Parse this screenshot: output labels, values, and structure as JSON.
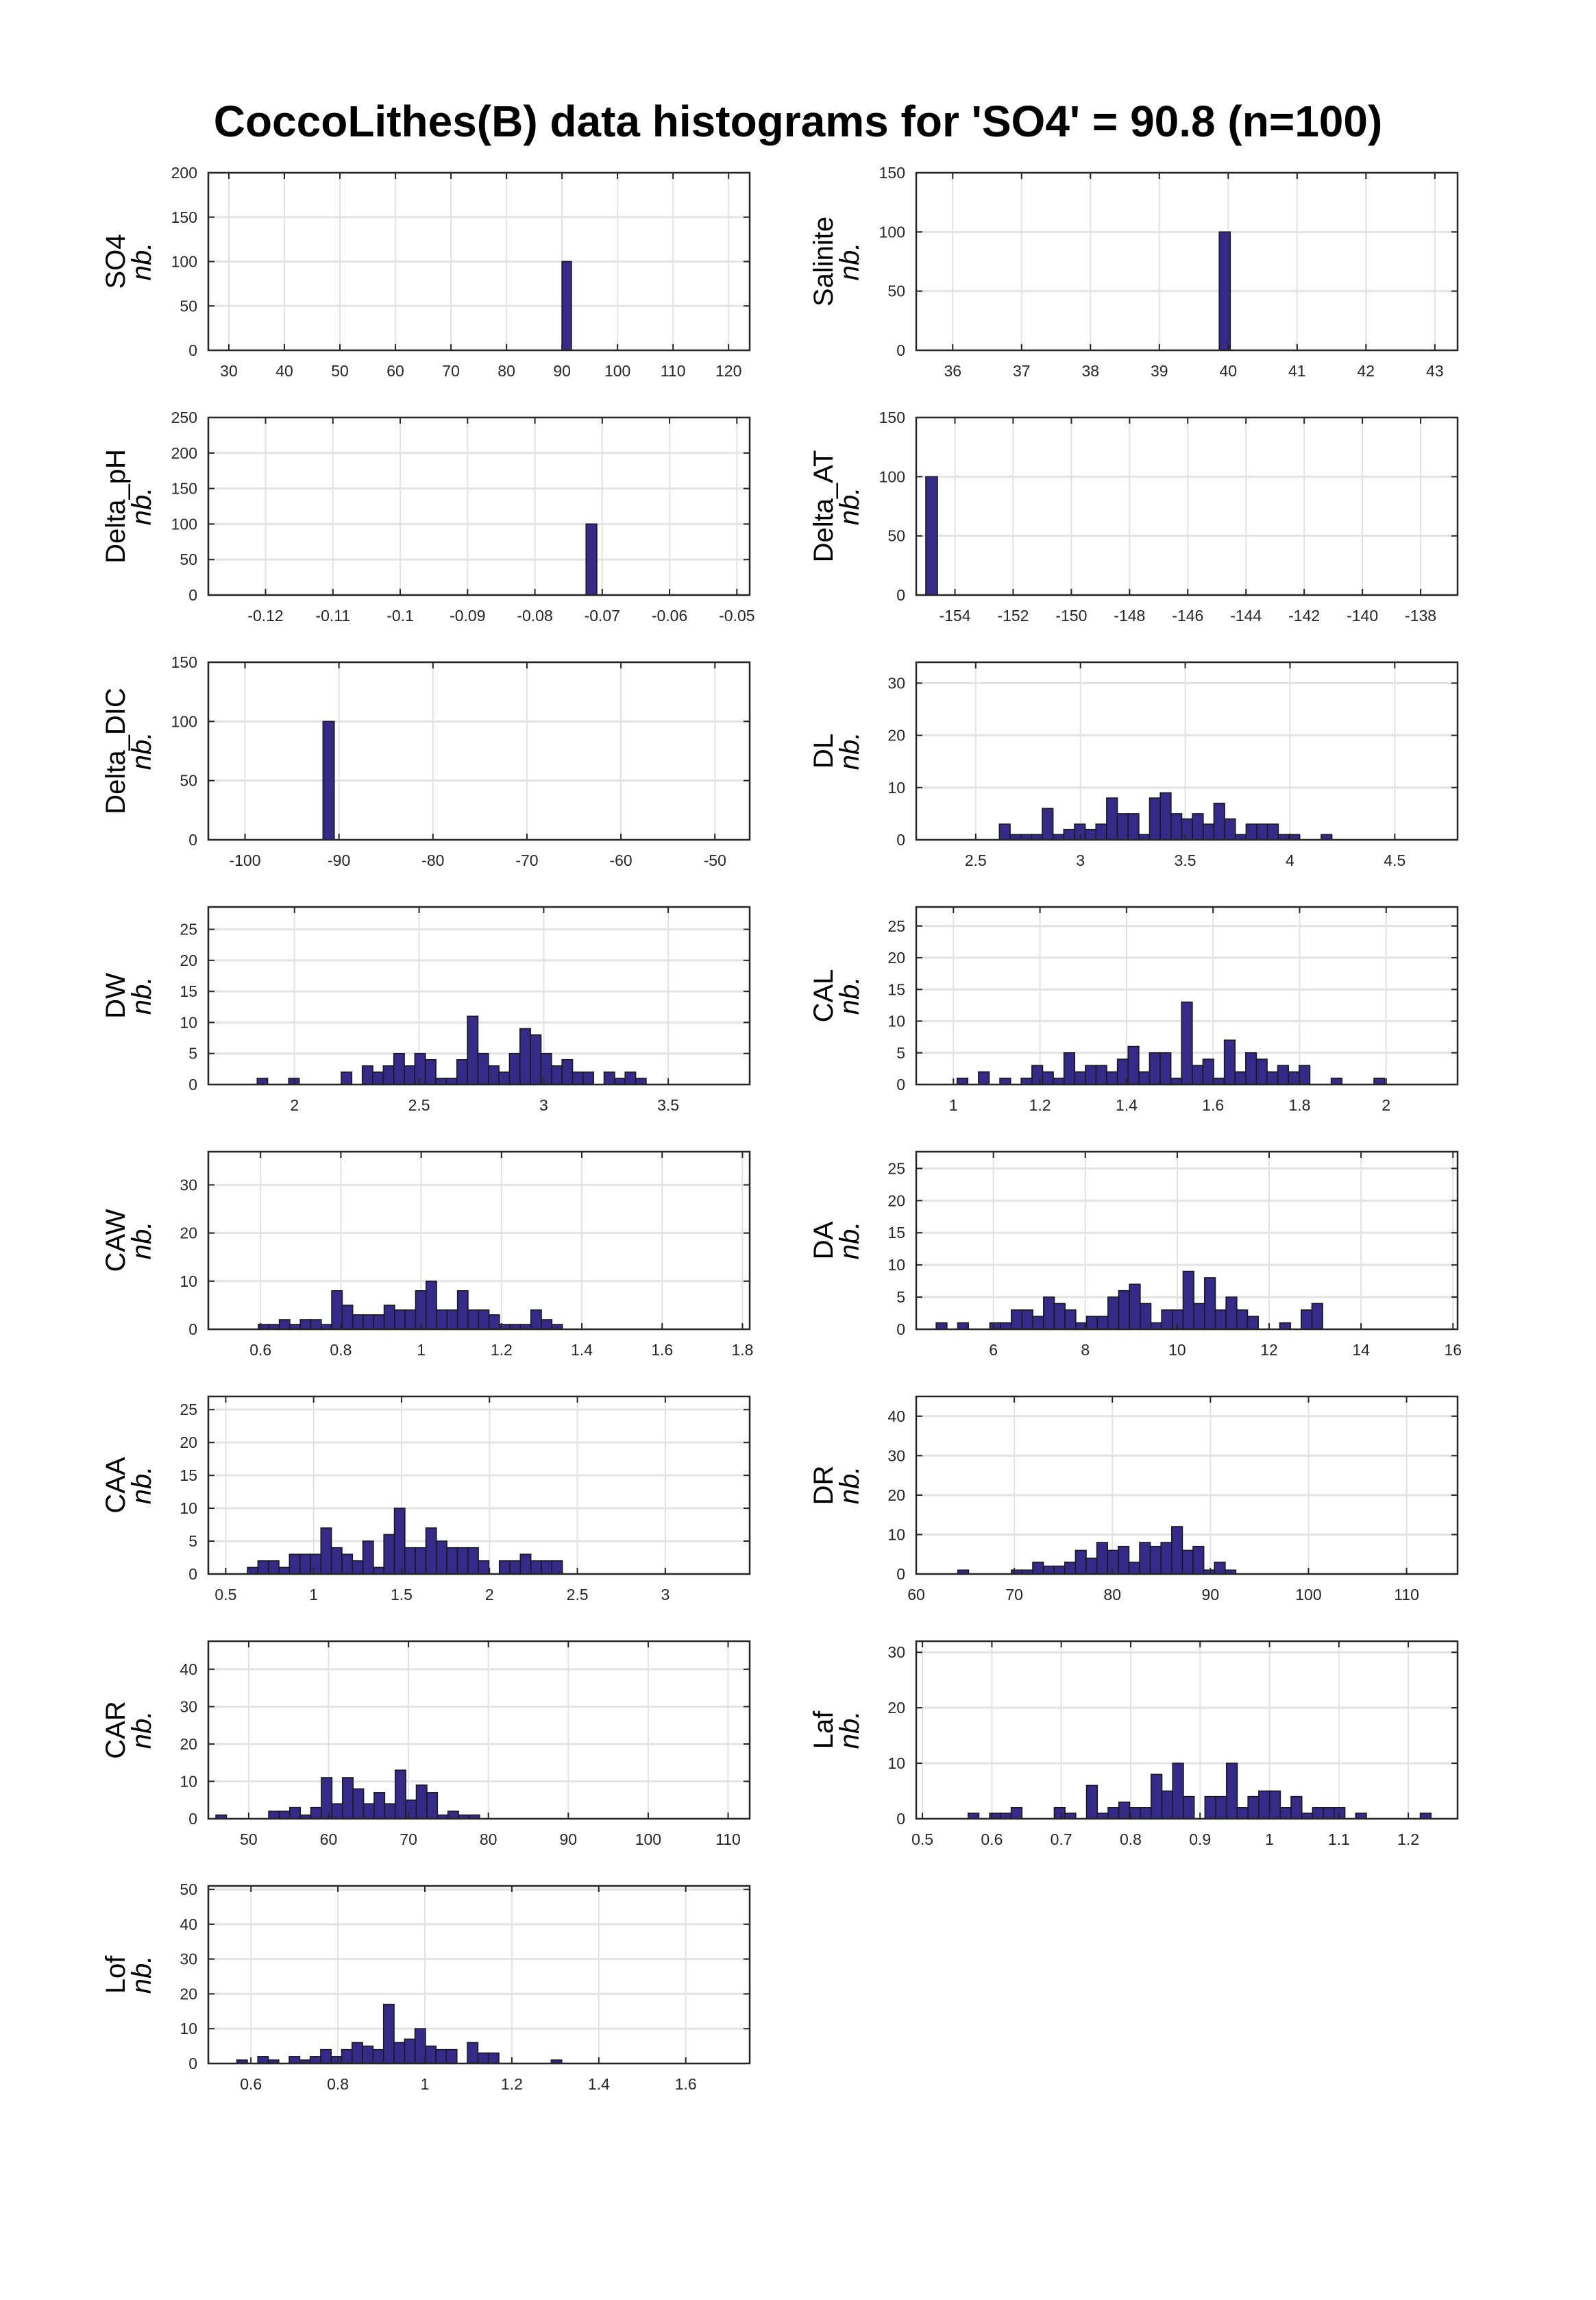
{
  "title": "CoccoLithes(B) data histograms for 'SO4' = 90.8 (n=100)",
  "colors": {
    "bar_fill": "#352a87",
    "bar_edge": "#1a1a1a",
    "grid": "#e3e3e3",
    "axis": "#262626"
  },
  "chart_data": {
    "type": "bar",
    "subtype": "histogram-grid",
    "title": "CoccoLithes(B) data histograms for 'SO4' = 90.8 (n=100)",
    "n": 100,
    "grid": true,
    "panels": [
      {
        "name": "SO4",
        "ylabel": "nb.",
        "xlim": [
          26.3,
          123.8
        ],
        "ylim": [
          0,
          200
        ],
        "xticks": [
          "30",
          "40",
          "50",
          "60",
          "70",
          "80",
          "90",
          "100",
          "110",
          "120"
        ],
        "yticks": [
          "0",
          "50",
          "100",
          "150",
          "200"
        ],
        "bin_start": 90.0,
        "bin_width": 1.7,
        "counts": [
          100
        ]
      },
      {
        "name": "Salinite",
        "ylabel": "nb.",
        "xlim": [
          35.47,
          43.33
        ],
        "ylim": [
          0,
          150
        ],
        "xticks": [
          "36",
          "37",
          "38",
          "39",
          "40",
          "41",
          "42",
          "43"
        ],
        "yticks": [
          "0",
          "50",
          "100",
          "150"
        ],
        "bin_start": 39.87,
        "bin_width": 0.16,
        "counts": [
          100
        ]
      },
      {
        "name": "Delta_pH",
        "ylabel": "nb.",
        "xlim": [
          -0.1285,
          -0.0481
        ],
        "ylim": [
          0,
          250
        ],
        "xticks": [
          "-0.12",
          "-0.11",
          "-0.1",
          "-0.09",
          "-0.08",
          "-0.07",
          "-0.06",
          "-0.05"
        ],
        "yticks": [
          "0",
          "50",
          "100",
          "150",
          "200",
          "250"
        ],
        "bin_start": -0.0724,
        "bin_width": 0.0016,
        "counts": [
          100
        ]
      },
      {
        "name": "Delta_AT",
        "ylabel": "nb.",
        "xlim": [
          -155.33,
          -136.73
        ],
        "ylim": [
          0,
          150
        ],
        "xticks": [
          "-154",
          "-152",
          "-150",
          "-148",
          "-146",
          "-144",
          "-142",
          "-140",
          "-138"
        ],
        "yticks": [
          "0",
          "50",
          "100",
          "150"
        ],
        "bin_start": -155.0,
        "bin_width": 0.4,
        "counts": [
          100
        ]
      },
      {
        "name": "Delta_DIC",
        "ylabel": "nb.",
        "xlim": [
          -103.9,
          -46.3
        ],
        "ylim": [
          0,
          150
        ],
        "xticks": [
          "-100",
          "-90",
          "-80",
          "-70",
          "-60",
          "-50"
        ],
        "yticks": [
          "0",
          "50",
          "100",
          "150"
        ],
        "bin_start": -91.7,
        "bin_width": 1.2,
        "counts": [
          100
        ]
      },
      {
        "name": "DL",
        "ylabel": "nb.",
        "xlim": [
          2.216,
          4.8
        ],
        "ylim": [
          0,
          34
        ],
        "xticks": [
          "2.5",
          "3",
          "3.5",
          "4",
          "4.5"
        ],
        "yticks": [
          "0",
          "10",
          "20",
          "30"
        ],
        "bin_start": 2.613,
        "bin_width": 0.0512,
        "counts": [
          3,
          1,
          1,
          1,
          6,
          1,
          2,
          3,
          2,
          3,
          8,
          5,
          5,
          1,
          8,
          9,
          5,
          4,
          5,
          3,
          7,
          4,
          1,
          3,
          3,
          3,
          1,
          1,
          0,
          0,
          1
        ]
      },
      {
        "name": "DW",
        "ylabel": "nb.",
        "xlim": [
          1.654,
          3.827
        ],
        "ylim": [
          0,
          28.6
        ],
        "xticks": [
          "2",
          "2.5",
          "3",
          "3.5"
        ],
        "yticks": [
          "0",
          "5",
          "10",
          "15",
          "20",
          "25"
        ],
        "bin_start": 1.85,
        "bin_width": 0.0422,
        "counts": [
          1,
          0,
          0,
          1,
          0,
          0,
          0,
          0,
          2,
          0,
          3,
          2,
          3,
          5,
          3,
          5,
          4,
          1,
          1,
          4,
          11,
          5,
          3,
          2,
          5,
          9,
          8,
          5,
          3,
          4,
          2,
          2,
          0,
          2,
          1,
          2,
          1
        ]
      },
      {
        "name": "CAL",
        "ylabel": "nb.",
        "xlim": [
          0.914,
          2.165
        ],
        "ylim": [
          0,
          28
        ],
        "xticks": [
          "1",
          "1.2",
          "1.4",
          "1.6",
          "1.8",
          "2"
        ],
        "yticks": [
          "0",
          "5",
          "10",
          "15",
          "20",
          "25"
        ],
        "bin_start": 1.0085,
        "bin_width": 0.0247,
        "counts": [
          1,
          0,
          2,
          0,
          1,
          0,
          1,
          3,
          2,
          1,
          5,
          2,
          3,
          3,
          2,
          4,
          6,
          2,
          5,
          5,
          1,
          13,
          3,
          4,
          1,
          7,
          2,
          5,
          4,
          2,
          3,
          2,
          3,
          0,
          0,
          1,
          0,
          0,
          0,
          1
        ]
      },
      {
        "name": "CAW",
        "ylabel": "nb.",
        "xlim": [
          0.47,
          1.818
        ],
        "ylim": [
          0,
          36.9
        ],
        "xticks": [
          "0.6",
          "0.8",
          "1",
          "1.2",
          "1.4",
          "1.6",
          "1.8"
        ],
        "yticks": [
          "0",
          "10",
          "20",
          "30"
        ],
        "bin_start": 0.5946,
        "bin_width": 0.0261,
        "counts": [
          1,
          1,
          2,
          1,
          2,
          2,
          1,
          8,
          5,
          3,
          3,
          3,
          5,
          4,
          4,
          8,
          10,
          4,
          4,
          8,
          4,
          4,
          3,
          1,
          1,
          1,
          4,
          2,
          1
        ]
      },
      {
        "name": "DA",
        "ylabel": "nb.",
        "xlim": [
          4.32,
          16.1
        ],
        "ylim": [
          0,
          27.6
        ],
        "xticks": [
          "6",
          "8",
          "10",
          "12",
          "14",
          "16"
        ],
        "yticks": [
          "0",
          "5",
          "10",
          "15",
          "20",
          "25"
        ],
        "bin_start": 4.755,
        "bin_width": 0.2336,
        "counts": [
          1,
          0,
          1,
          0,
          0,
          1,
          1,
          3,
          3,
          2,
          5,
          4,
          3,
          1,
          2,
          2,
          5,
          6,
          7,
          4,
          1,
          3,
          3,
          9,
          4,
          8,
          3,
          5,
          3,
          2,
          0,
          0,
          1,
          0,
          3,
          4
        ]
      },
      {
        "name": "CAA",
        "ylabel": "nb.",
        "xlim": [
          0.401,
          3.48
        ],
        "ylim": [
          0,
          27
        ],
        "xticks": [
          "0.5",
          "1",
          "1.5",
          "2",
          "2.5",
          "3"
        ],
        "yticks": [
          "0",
          "5",
          "10",
          "15",
          "20",
          "25"
        ],
        "bin_start": 0.6235,
        "bin_width": 0.0597,
        "counts": [
          1,
          2,
          2,
          1,
          3,
          3,
          3,
          7,
          4,
          3,
          2,
          5,
          1,
          6,
          10,
          4,
          4,
          7,
          5,
          4,
          4,
          4,
          2,
          0,
          2,
          2,
          3,
          2,
          2,
          2
        ]
      },
      {
        "name": "DR",
        "ylabel": "nb.",
        "xlim": [
          60,
          115.2
        ],
        "ylim": [
          0,
          45
        ],
        "xticks": [
          "60",
          "70",
          "80",
          "90",
          "100",
          "110"
        ],
        "yticks": [
          "0",
          "10",
          "20",
          "30",
          "40"
        ],
        "bin_start": 64.25,
        "bin_width": 1.09,
        "counts": [
          1,
          0,
          0,
          0,
          0,
          1,
          1,
          3,
          2,
          2,
          3,
          6,
          4,
          8,
          6,
          7,
          3,
          8,
          7,
          8,
          12,
          6,
          7,
          1,
          3,
          1
        ]
      },
      {
        "name": "CAR",
        "ylabel": "nb.",
        "xlim": [
          44.95,
          112.7
        ],
        "ylim": [
          0,
          47.5
        ],
        "xticks": [
          "50",
          "60",
          "70",
          "80",
          "90",
          "100",
          "110"
        ],
        "yticks": [
          "0",
          "10",
          "20",
          "30",
          "40"
        ],
        "bin_start": 45.9,
        "bin_width": 1.32,
        "counts": [
          1,
          0,
          0,
          0,
          0,
          2,
          2,
          3,
          1,
          3,
          11,
          4,
          11,
          8,
          4,
          7,
          4,
          13,
          5,
          9,
          7,
          1,
          2,
          1,
          1
        ]
      },
      {
        "name": "Laf",
        "ylabel": "nb.",
        "xlim": [
          0.491,
          1.271
        ],
        "ylim": [
          0,
          32
        ],
        "xticks": [
          "0.5",
          "0.6",
          "0.7",
          "0.8",
          "0.9",
          "1",
          "1.1",
          "1.2"
        ],
        "yticks": [
          "0",
          "10",
          "20",
          "30"
        ],
        "bin_start": 0.5658,
        "bin_width": 0.01551,
        "counts": [
          1,
          0,
          1,
          1,
          2,
          0,
          0,
          0,
          2,
          1,
          0,
          6,
          1,
          2,
          3,
          2,
          2,
          8,
          5,
          10,
          4,
          0,
          4,
          4,
          10,
          2,
          4,
          5,
          5,
          2,
          4,
          1,
          2,
          2,
          2,
          0,
          1,
          0,
          0,
          0,
          0,
          0,
          1
        ]
      },
      {
        "name": "Lof",
        "ylabel": "nb.",
        "xlim": [
          0.502,
          1.747
        ],
        "ylim": [
          0,
          51
        ],
        "xticks": [
          "0.6",
          "0.8",
          "1",
          "1.2",
          "1.4",
          "1.6"
        ],
        "yticks": [
          "0",
          "10",
          "20",
          "30",
          "40",
          "50"
        ],
        "bin_start": 0.5676,
        "bin_width": 0.0241,
        "counts": [
          1,
          0,
          2,
          1,
          0,
          2,
          1,
          2,
          4,
          2,
          4,
          6,
          5,
          4,
          17,
          6,
          7,
          10,
          5,
          4,
          4,
          0,
          6,
          3,
          3,
          0,
          0,
          0,
          0,
          0,
          1
        ]
      }
    ]
  }
}
